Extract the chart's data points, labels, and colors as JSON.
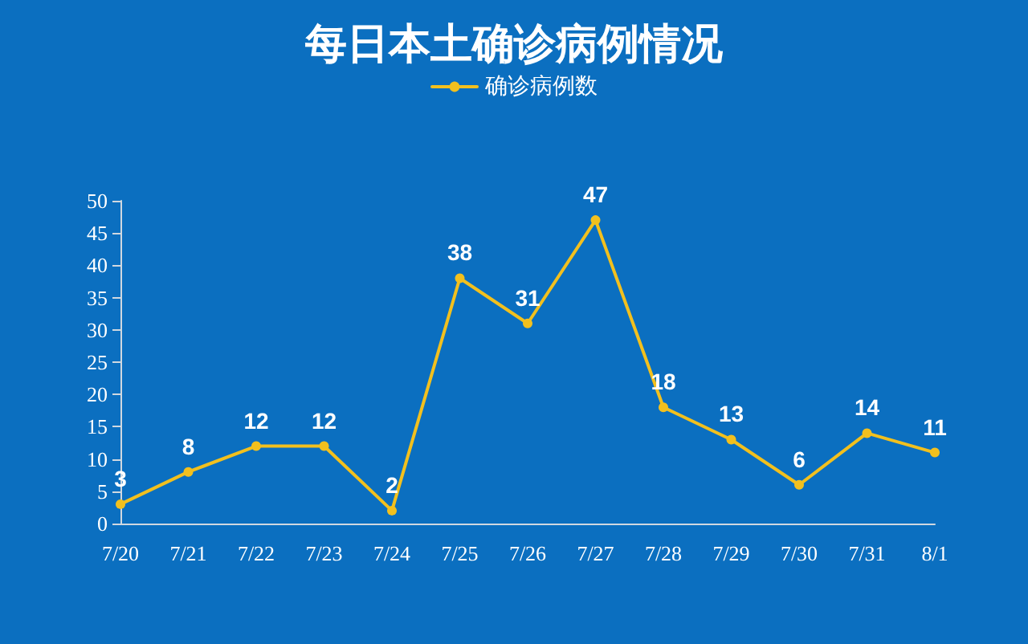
{
  "chart_data": {
    "type": "line",
    "title": "每日本土确诊病例情况",
    "categories": [
      "7/20",
      "7/21",
      "7/22",
      "7/23",
      "7/24",
      "7/25",
      "7/26",
      "7/27",
      "7/28",
      "7/29",
      "7/30",
      "7/31",
      "8/1"
    ],
    "series": [
      {
        "name": "确诊病例数",
        "color": "#f2c01e",
        "values": [
          3,
          8,
          12,
          12,
          2,
          38,
          31,
          47,
          18,
          13,
          6,
          14,
          11
        ]
      }
    ],
    "ylim": [
      0,
      50
    ],
    "yticks": [
      0,
      5,
      10,
      15,
      20,
      25,
      30,
      35,
      40,
      45,
      50
    ],
    "grid": false,
    "legend": "top",
    "marker": "circle",
    "line_style": "solid",
    "data_labels": true
  }
}
